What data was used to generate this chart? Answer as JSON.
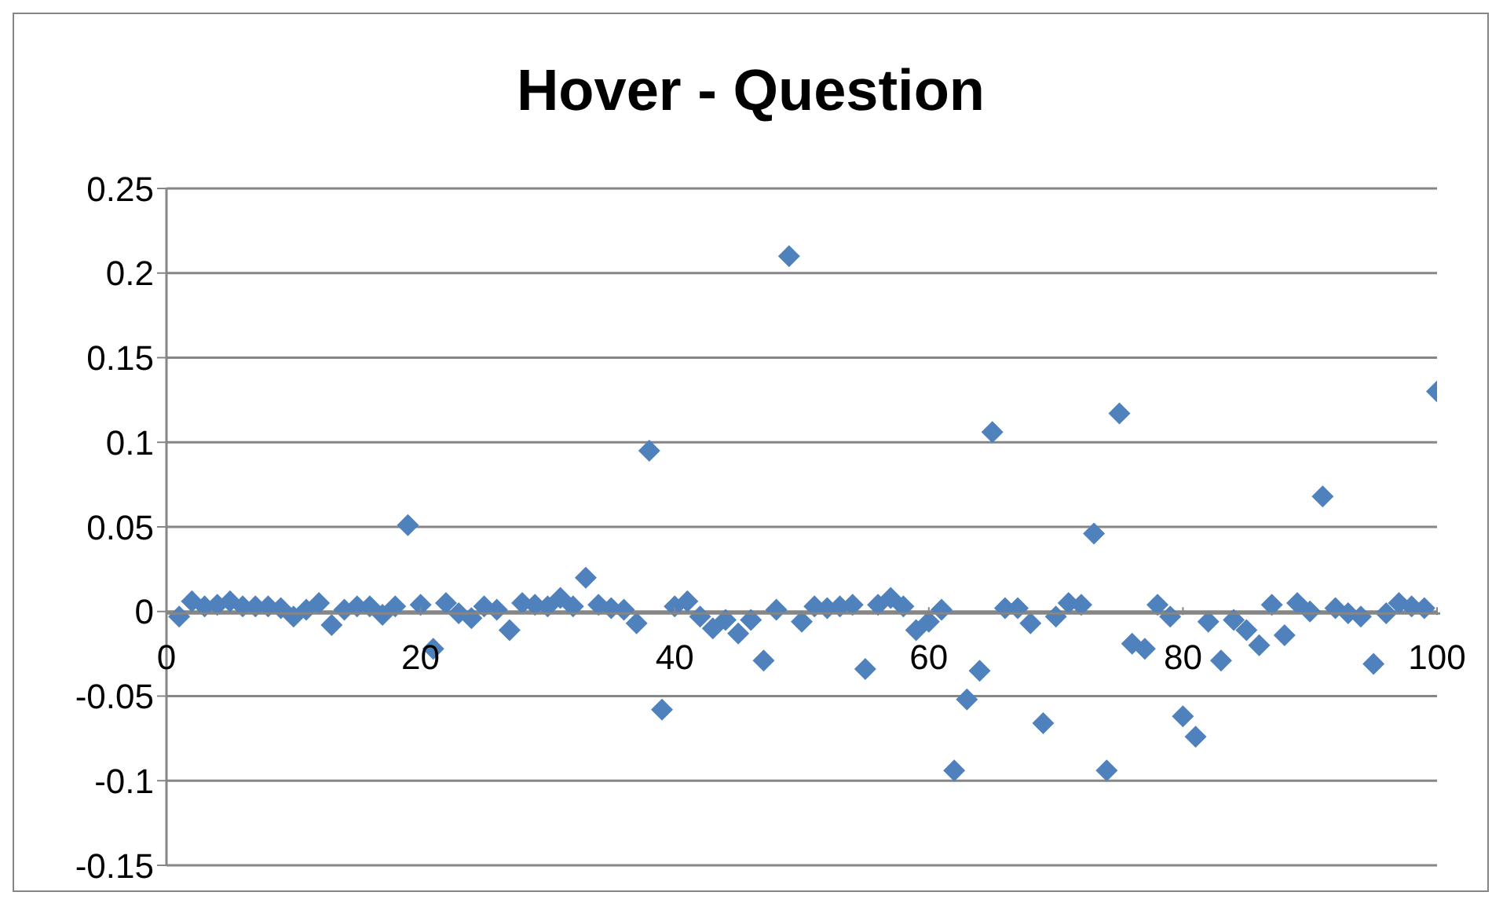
{
  "chart_data": {
    "type": "scatter",
    "title": "Hover - Question",
    "x": [
      1,
      2,
      3,
      4,
      5,
      6,
      7,
      8,
      9,
      10,
      11,
      12,
      13,
      14,
      15,
      16,
      17,
      18,
      19,
      20,
      21,
      22,
      23,
      24,
      25,
      26,
      27,
      28,
      29,
      30,
      31,
      32,
      33,
      34,
      35,
      36,
      37,
      38,
      39,
      40,
      41,
      42,
      43,
      44,
      45,
      46,
      47,
      48,
      49,
      50,
      51,
      52,
      53,
      54,
      55,
      56,
      57,
      58,
      59,
      60,
      61,
      62,
      63,
      64,
      65,
      66,
      67,
      68,
      69,
      70,
      71,
      72,
      73,
      74,
      75,
      76,
      77,
      78,
      79,
      80,
      81,
      82,
      83,
      84,
      85,
      86,
      87,
      88,
      89,
      90,
      91,
      92,
      93,
      94,
      95,
      96,
      97,
      98,
      99,
      100
    ],
    "series": [
      {
        "color": "#4f81bd",
        "values": [
          -0.003,
          0.006,
          0.003,
          0.004,
          0.006,
          0.003,
          0.003,
          0.003,
          0.002,
          -0.003,
          0.001,
          0.005,
          -0.008,
          0.001,
          0.003,
          0.003,
          -0.002,
          0.003,
          0.051,
          0.004,
          -0.022,
          0.005,
          -0.001,
          -0.004,
          0.003,
          0.001,
          -0.011,
          0.005,
          0.004,
          0.003,
          0.008,
          0.003,
          0.02,
          0.004,
          0.002,
          0.001,
          -0.007,
          0.095,
          -0.058,
          0.003,
          0.006,
          -0.003,
          -0.01,
          -0.005,
          -0.013,
          -0.005,
          -0.029,
          0.001,
          0.21,
          -0.006,
          0.003,
          0.002,
          0.003,
          0.004,
          -0.034,
          0.004,
          0.008,
          0.003,
          -0.011,
          -0.006,
          0.001,
          -0.094,
          -0.052,
          -0.035,
          0.106,
          0.002,
          0.002,
          -0.007,
          -0.066,
          -0.003,
          0.005,
          0.004,
          0.046,
          -0.094,
          0.117,
          -0.019,
          -0.022,
          0.004,
          -0.003,
          -0.062,
          -0.074,
          -0.006,
          -0.029,
          -0.005,
          -0.011,
          -0.02,
          0.004,
          -0.014,
          0.005,
          0.0,
          0.068,
          0.002,
          -0.001,
          -0.003,
          -0.031,
          -0.001,
          0.005,
          0.003,
          0.002,
          0.13
        ]
      }
    ],
    "xlim": [
      0,
      100
    ],
    "xticks": [
      0,
      20,
      40,
      60,
      80,
      100
    ],
    "ylim": [
      -0.15,
      0.25
    ],
    "yticks": [
      -0.15,
      -0.1,
      -0.05,
      0,
      0.05,
      0.1,
      0.15,
      0.2,
      0.25
    ],
    "grid": "y",
    "marker": "diamond",
    "legend": false
  }
}
